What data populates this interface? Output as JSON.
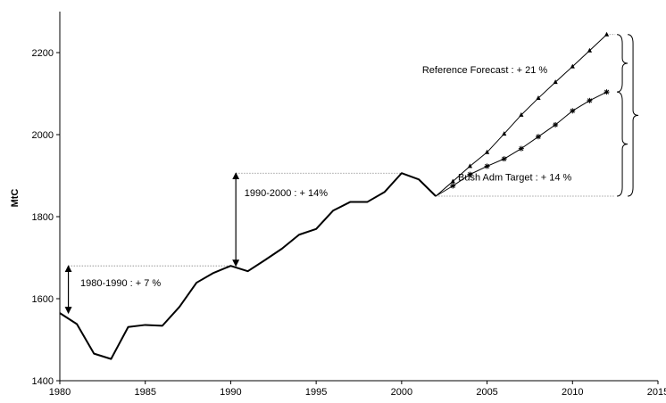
{
  "chart_data": {
    "type": "line",
    "title": "",
    "xlabel": "",
    "ylabel": "MtC",
    "xlim": [
      1980,
      2015
    ],
    "ylim": [
      1400,
      2300
    ],
    "x_ticks": [
      1980,
      1985,
      1990,
      1995,
      2000,
      2005,
      2010,
      2015
    ],
    "y_ticks": [
      1400,
      1600,
      1800,
      2000,
      2200
    ],
    "x_tick_labels": [
      "1980",
      "1985",
      "1990",
      "1995",
      "2000",
      "2005",
      "2010",
      "2015"
    ],
    "y_tick_labels": [
      "1400",
      "1600",
      "1800",
      "2000",
      "2200"
    ],
    "grid": false,
    "series": [
      {
        "x": [
          1980,
          1981,
          1982,
          1983,
          1984,
          1985,
          1986,
          1987,
          1988,
          1989,
          1990,
          1991,
          1992,
          1993,
          1994,
          1995,
          1996,
          1997,
          1998,
          1999,
          2000,
          2001,
          2002
        ],
        "values": [
          1565,
          1538,
          1466,
          1453,
          1531,
          1536,
          1534,
          1580,
          1639,
          1663,
          1680,
          1667,
          1694,
          1722,
          1756,
          1770,
          1815,
          1836,
          1836,
          1860,
          1906,
          1891,
          1850
        ],
        "marker": "none",
        "style": "thick"
      },
      {
        "x": [
          2002,
          2003,
          2004,
          2005,
          2006,
          2007,
          2008,
          2009,
          2010,
          2011,
          2012
        ],
        "values": [
          1850,
          1886,
          1923,
          1957,
          2002,
          2048,
          2089,
          2128,
          2166,
          2205,
          2244
        ],
        "marker": "triangle"
      },
      {
        "x": [
          2002,
          2003,
          2004,
          2005,
          2006,
          2007,
          2008,
          2009,
          2010,
          2011,
          2012
        ],
        "values": [
          1850,
          1875,
          1903,
          1923,
          1941,
          1966,
          1995,
          2024,
          2058,
          2083,
          2104
        ],
        "marker": "star"
      }
    ],
    "annotations": [
      {
        "text": "1980-1990 : + 7 %",
        "x": 1981.2,
        "y": 1630,
        "arrow_x": 1980.5,
        "arrow_from": 1565,
        "arrow_to": 1680
      },
      {
        "text": "1990-2000 : + 14%",
        "x": 1990.8,
        "y": 1850,
        "arrow_x": 1990.3,
        "arrow_from": 1680,
        "arrow_to": 1906
      },
      {
        "text": "Reference Forecast : + 21 %",
        "x": 2001.2,
        "y": 2150
      },
      {
        "text": "Bush Adm Target : + 14 %",
        "x": 2003.3,
        "y": 1888
      }
    ]
  }
}
